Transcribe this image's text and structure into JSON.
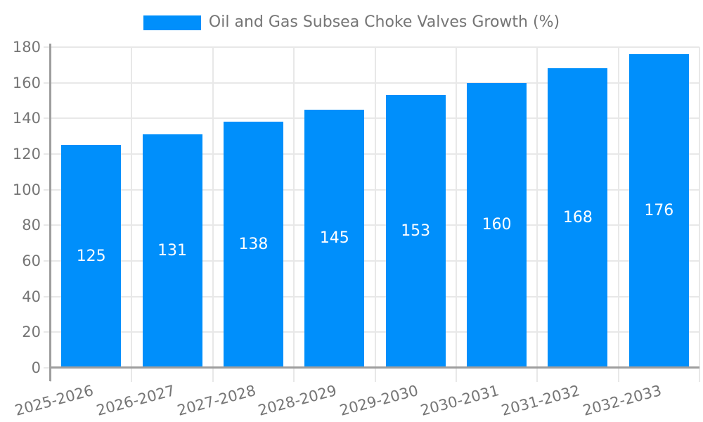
{
  "chart_data": {
    "type": "bar",
    "title": "Oil and Gas Subsea Choke Valves Growth (%)",
    "legend": {
      "position": "top",
      "label": "Oil and Gas Subsea Choke Valves Growth (%)"
    },
    "categories": [
      "2025-2026",
      "2026-2027",
      "2027-2028",
      "2028-2029",
      "2029-2030",
      "2030-2031",
      "2031-2032",
      "2032-2033"
    ],
    "series": [
      {
        "name": "Oil and Gas Subsea Choke Valves Growth (%)",
        "values": [
          125,
          131,
          138,
          145,
          153,
          160,
          168,
          176
        ]
      }
    ],
    "value_labels_shown": true,
    "xlabel": "",
    "ylabel": "",
    "ylim": [
      0,
      180
    ],
    "yticks": [
      0,
      20,
      40,
      60,
      80,
      100,
      120,
      140,
      160,
      180
    ],
    "x_label_rotation_deg": -15,
    "grid": true,
    "colors": {
      "bar": "#008FFB",
      "value_label": "#ffffff",
      "axis_text": "#757575",
      "grid_line": "#e8e8e8",
      "axis_line": "#9e9e9e",
      "background": "#ffffff"
    }
  }
}
